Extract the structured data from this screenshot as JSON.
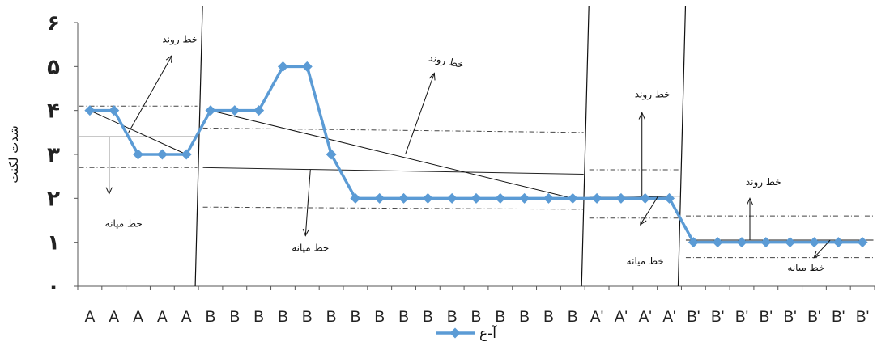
{
  "chart_data": {
    "type": "line",
    "ylabel": "شدت لکنت",
    "ylim": [
      0,
      6
    ],
    "y_tick_labels": [
      "٠",
      "١",
      "٢",
      "٣",
      "۴",
      "۵",
      "۶"
    ],
    "categories": [
      "A",
      "A",
      "A",
      "A",
      "A",
      "B",
      "B",
      "B",
      "B",
      "B",
      "B",
      "B",
      "B",
      "B",
      "B",
      "B",
      "B",
      "B",
      "B",
      "B",
      "B",
      "A'",
      "A'",
      "A'",
      "A'",
      "B'",
      "B'",
      "B'",
      "B'",
      "B'",
      "B'",
      "B'",
      "B'"
    ],
    "series": [
      {
        "name": "آ-ع",
        "color": "#5b9bd5",
        "values": [
          4,
          4,
          3,
          3,
          3,
          4,
          4,
          4,
          5,
          5,
          3,
          2,
          2,
          2,
          2,
          2,
          2,
          2,
          2,
          2,
          2,
          2,
          2,
          2,
          2,
          1,
          1,
          1,
          1,
          1,
          1,
          1,
          1
        ]
      }
    ],
    "phases": [
      {
        "label": "A",
        "start": 0,
        "end": 4,
        "median": 3.4,
        "upper_band": 4.1,
        "lower_band": 2.7,
        "trend_start": 4.0,
        "trend_end": 3.0
      },
      {
        "label": "B",
        "start": 5,
        "end": 20,
        "median": 2.7,
        "median_end": 2.55,
        "upper_band": 3.6,
        "upper_band_end": 3.5,
        "lower_band": 1.8,
        "lower_band_end": 1.75,
        "trend_start": 4.0,
        "trend_end": 2.0
      },
      {
        "label": "A'",
        "start": 21,
        "end": 24,
        "median": 2.05,
        "upper_band": 2.65,
        "lower_band": 1.55,
        "trend_start": 2.0,
        "trend_end": 2.05
      },
      {
        "label": "B'",
        "start": 25,
        "end": 32,
        "median": 1.05,
        "upper_band": 1.6,
        "lower_band": 0.65,
        "trend_start": 1.0,
        "trend_end": 1.0
      }
    ],
    "annotations": {
      "trend_label": "خط روند",
      "median_label": "خط میانه"
    },
    "legend": {
      "position": "bottom",
      "label": "آ-ع"
    },
    "grid": false
  }
}
